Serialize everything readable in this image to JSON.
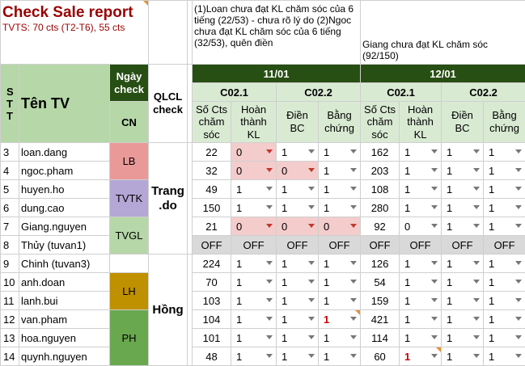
{
  "title": "Check Sale report",
  "subtitle": "TVTS: 70 cts (T2-T6), 55 cts",
  "notes": {
    "left": "(1)Loan chưa đạt KL chăm sóc của 6 tiếng (22/53) - chưa rõ lý do (2)Ngoc chưa đạt KL chăm sóc của 6 tiếng (32/53), quên điền",
    "right": "Giang chưa đạt KL chăm sóc (92/150)"
  },
  "headers": {
    "stt": "STT",
    "ten_tv": "Tên TV",
    "ngay_check": "Ngày check",
    "cn": "CN",
    "qlcl": "QLCL check",
    "date1": "11/01",
    "date2": "12/01",
    "c021": "C02.1",
    "c022": "C02.2",
    "so_cts": "Số Cts chăm sóc",
    "hoan_thanh": "Hoàn thành KL",
    "dien_bc": "Điền BC",
    "bang_chung": "Bằng chứng"
  },
  "groups": {
    "lb": "LB",
    "tvtk": "TVTK",
    "tvgl": "TVGL",
    "lh": "LH",
    "ph": "PH",
    "trang": "Trang .do",
    "hong": "Hồng"
  },
  "rows": [
    {
      "stt": "3",
      "name": "loan.dang",
      "d1": [
        "22",
        "0",
        "1",
        "1"
      ],
      "d2": [
        "162",
        "1",
        "1",
        "1"
      ]
    },
    {
      "stt": "4",
      "name": "ngoc.pham",
      "d1": [
        "32",
        "0",
        "0",
        "1"
      ],
      "d2": [
        "203",
        "1",
        "1",
        "1"
      ]
    },
    {
      "stt": "5",
      "name": "huyen.ho",
      "d1": [
        "49",
        "1",
        "1",
        "1"
      ],
      "d2": [
        "108",
        "1",
        "1",
        "1"
      ]
    },
    {
      "stt": "6",
      "name": "dung.cao",
      "d1": [
        "150",
        "1",
        "1",
        "1"
      ],
      "d2": [
        "280",
        "1",
        "1",
        "1"
      ]
    },
    {
      "stt": "7",
      "name": "Giang.nguyen",
      "d1": [
        "21",
        "0",
        "0",
        "0"
      ],
      "d2": [
        "92",
        "0",
        "1",
        "1"
      ]
    },
    {
      "stt": "8",
      "name": "Thủy (tuvan1)",
      "d1": [
        "OFF",
        "OFF",
        "OFF",
        "OFF"
      ],
      "d2": [
        "OFF",
        "OFF",
        "OFF",
        "OFF"
      ]
    },
    {
      "stt": "9",
      "name": "Chinh (tuvan3)",
      "d1": [
        "224",
        "1",
        "1",
        "1"
      ],
      "d2": [
        "126",
        "1",
        "1",
        "1"
      ]
    },
    {
      "stt": "10",
      "name": "anh.doan",
      "d1": [
        "70",
        "1",
        "1",
        "1"
      ],
      "d2": [
        "54",
        "1",
        "1",
        "1"
      ]
    },
    {
      "stt": "11",
      "name": "lanh.bui",
      "d1": [
        "103",
        "1",
        "1",
        "1"
      ],
      "d2": [
        "159",
        "1",
        "1",
        "1"
      ]
    },
    {
      "stt": "12",
      "name": "van.pham",
      "d1": [
        "104",
        "1",
        "1",
        "1"
      ],
      "d2": [
        "421",
        "1",
        "1",
        "1"
      ]
    },
    {
      "stt": "13",
      "name": "hoa.nguyen",
      "d1": [
        "101",
        "1",
        "1",
        "1"
      ],
      "d2": [
        "114",
        "1",
        "1",
        "1"
      ]
    },
    {
      "stt": "14",
      "name": "quynh.nguyen",
      "d1": [
        "48",
        "1",
        "1",
        "1"
      ],
      "d2": [
        "60",
        "1",
        "1",
        "1"
      ]
    }
  ]
}
